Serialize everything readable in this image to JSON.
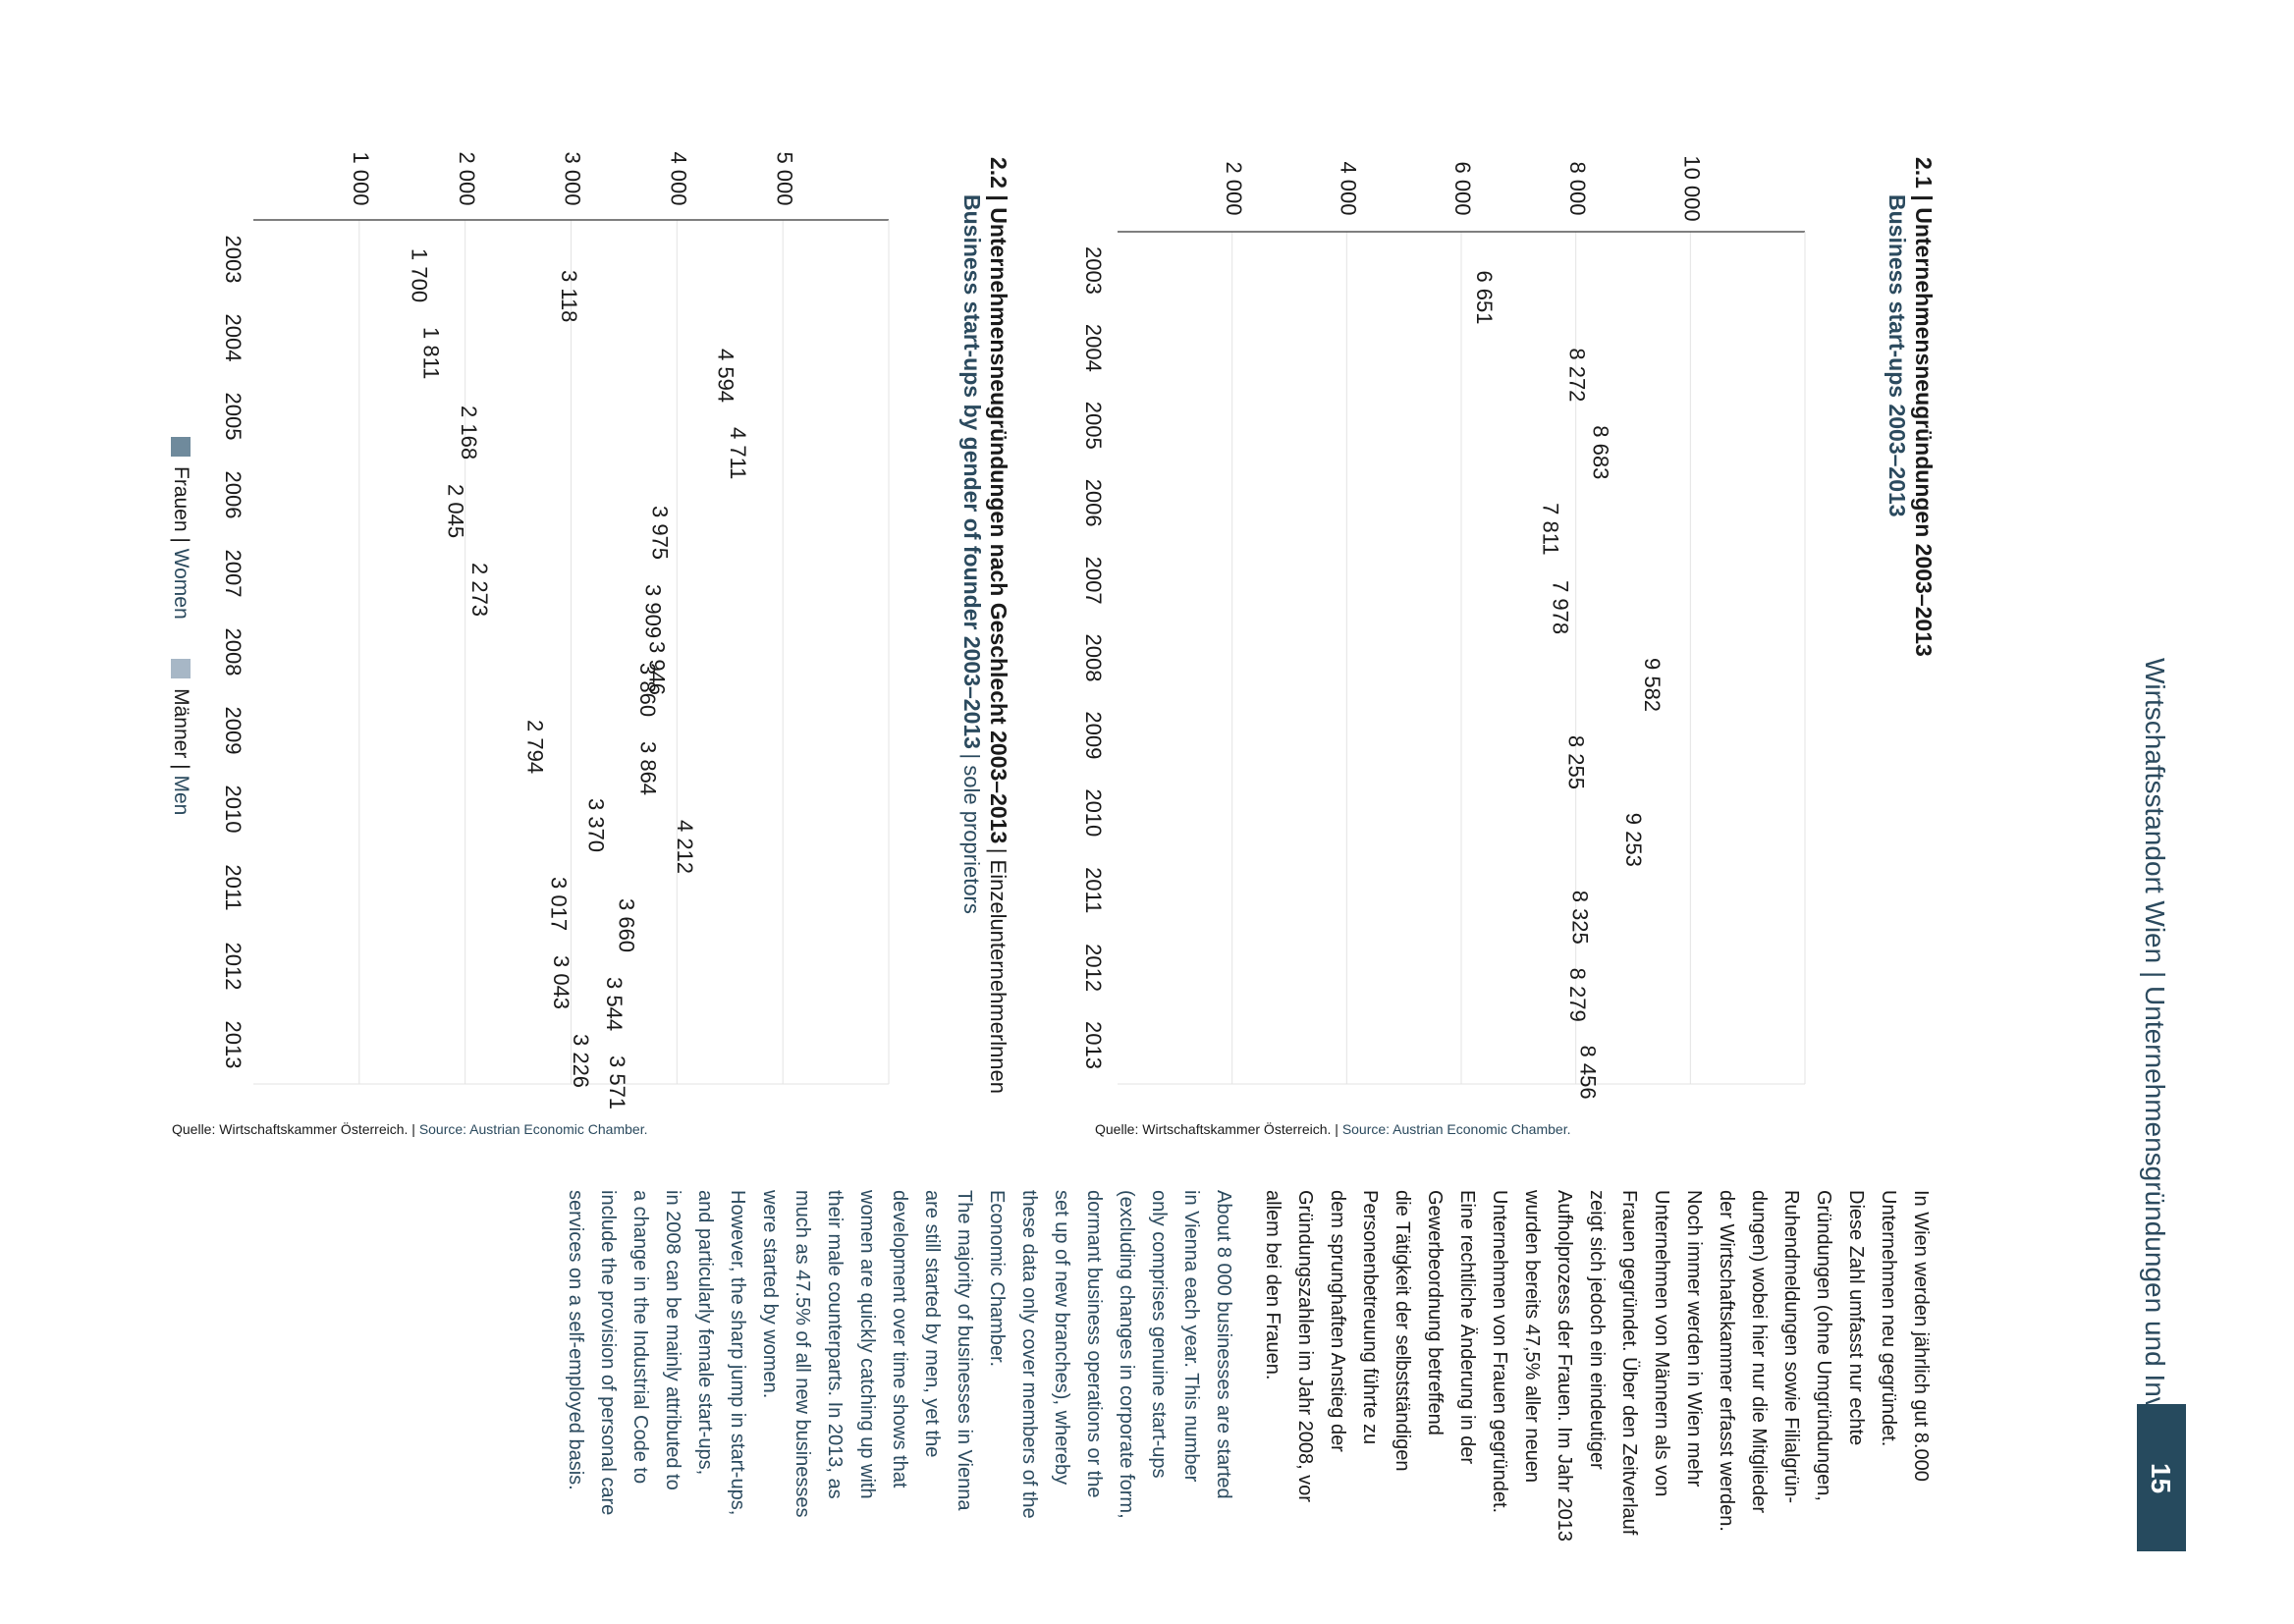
{
  "header": {
    "title": "Wirtschaftsstandort Wien | Unternehmensgründungen und Investitionen",
    "page_number": "15"
  },
  "chart1": {
    "number": "2.1",
    "title_de": "Unternehmensneugründungen 2003–2013",
    "title_en": "Business start-ups 2003–2013",
    "source_de": "Quelle: Wirtschaftskammer Österreich. |",
    "source_en": "Source: Austrian Economic Chamber."
  },
  "chart2": {
    "number": "2.2",
    "title_de": "Unternehmensneugründungen nach Geschlecht 2003–2013",
    "title_sub_de": "| Einzelunternehmerlnnen",
    "title_en": "Business start-ups by gender of founder 2003–2013",
    "title_sub_en": "| sole proprietors",
    "source_de": "Quelle: Wirtschaftskammer Österreich. |",
    "source_en": "Source: Austrian Economic Chamber.",
    "legend": {
      "women_de": "Frauen |",
      "women_en": "Women",
      "men_de": "Männer |",
      "men_en": "Men"
    }
  },
  "text_de": [
    "In Wien werden jährlich gut 8.000",
    "Unternehmen neu gegründet.",
    "Diese  Zahl umfasst nur echte",
    "Gründungen (ohne Umgründungen,",
    "Ruhendmeldungen sowie Filialgrün-",
    "dungen) wobei hier nur die Mitglieder",
    "der Wirtschaftskammer erfasst werden.",
    "Noch immer werden in Wien mehr",
    "Unternehmen von Männern als von",
    "Frauen gegründet. Über den Zeitverlauf",
    "zeigt sich jedoch ein eindeutiger",
    "Aufholprozess der Frauen. Im Jahr 2013",
    "wurden bereits 47,5% aller neuen",
    "Unternehmen von Frauen gegründet.",
    "Eine rechtliche Änderung in der",
    "Gewerbeordnung betreffend",
    "die Tätigkeit der selbstständigen",
    "Personenbetreuung führte zu",
    "dem sprunghaften Anstieg der",
    "Gründungszahlen im Jahr 2008, vor",
    "allem bei den Frauen."
  ],
  "text_en": [
    "About 8 000 businesses are started",
    "in Vienna each year. This number",
    "only comprises genuine start-ups",
    "(excluding changes in corporate form,",
    "dormant business operations or the",
    "set up of new branches), whereby",
    "these data only cover members of the",
    "Economic Chamber.",
    "The majority of businesses in Vienna",
    "are still started by men, yet the",
    "development over time shows that",
    "women are quickly catching up with",
    "their male counterparts. In 2013, as",
    "much as 47.5% of all new businesses",
    "were started by women.",
    "However, the sharp jump in start-ups,",
    "and particularly female start-ups,",
    "in 2008 can be mainly attributed to",
    "a change in the Industrial Code to",
    "include the provision of personal care",
    "services on a self-employed basis."
  ],
  "chart_data": [
    {
      "type": "bar",
      "orientation": "horizontal",
      "title": "Unternehmensneugründungen 2003–2013",
      "categories": [
        "2003",
        "2004",
        "2005",
        "2006",
        "2007",
        "2008",
        "2009",
        "2010",
        "2011",
        "2012",
        "2013"
      ],
      "values": [
        6651,
        8272,
        8683,
        7811,
        7978,
        9582,
        8255,
        9253,
        8325,
        8279,
        8456
      ],
      "value_labels": [
        "6 651",
        "8 272",
        "8 683",
        "7 811",
        "7 978",
        "9 582",
        "8 255",
        "9 253",
        "8 325",
        "8 279",
        "8 456"
      ],
      "xlim": [
        0,
        12000
      ],
      "ticks": [
        2000,
        4000,
        6000,
        8000,
        10000
      ],
      "tick_labels": [
        "2 000",
        "4 000",
        "6 000",
        "8 000",
        "10 000"
      ],
      "grid": true,
      "color": "#a7b7c6"
    },
    {
      "type": "bar",
      "orientation": "horizontal",
      "title": "Unternehmensneugründungen nach Geschlecht 2003–2013",
      "categories": [
        "2003",
        "2004",
        "2005",
        "2006",
        "2007",
        "2008",
        "2009",
        "2010",
        "2011",
        "2012",
        "2013"
      ],
      "series": [
        {
          "name": "Frauen | Women",
          "color": "#6f8a9c",
          "values": [
            1700,
            1811,
            2168,
            2045,
            2273,
            3946,
            2794,
            3370,
            3017,
            3043,
            3226
          ],
          "value_labels": [
            "1 700",
            "1 811",
            "2 168",
            "2 045",
            "2 273",
            "3 946",
            "2 794",
            "3 370",
            "3 017",
            "3 043",
            "3 226"
          ]
        },
        {
          "name": "Männer | Men",
          "color": "#a7b7c6",
          "values": [
            3118,
            4594,
            4711,
            3975,
            3909,
            3860,
            3864,
            4212,
            3660,
            3544,
            3571
          ],
          "value_labels": [
            "3 118",
            "4 594",
            "4 711",
            "3 975",
            "3 909",
            "3 860",
            "3 864",
            "4 212",
            "3 660",
            "3 544",
            "3 571"
          ]
        }
      ],
      "xlim": [
        0,
        6000
      ],
      "ticks": [
        1000,
        2000,
        3000,
        4000,
        5000
      ],
      "tick_labels": [
        "1 000",
        "2 000",
        "3 000",
        "4 000",
        "5 000"
      ],
      "grid": true,
      "legend": "bottom"
    }
  ]
}
